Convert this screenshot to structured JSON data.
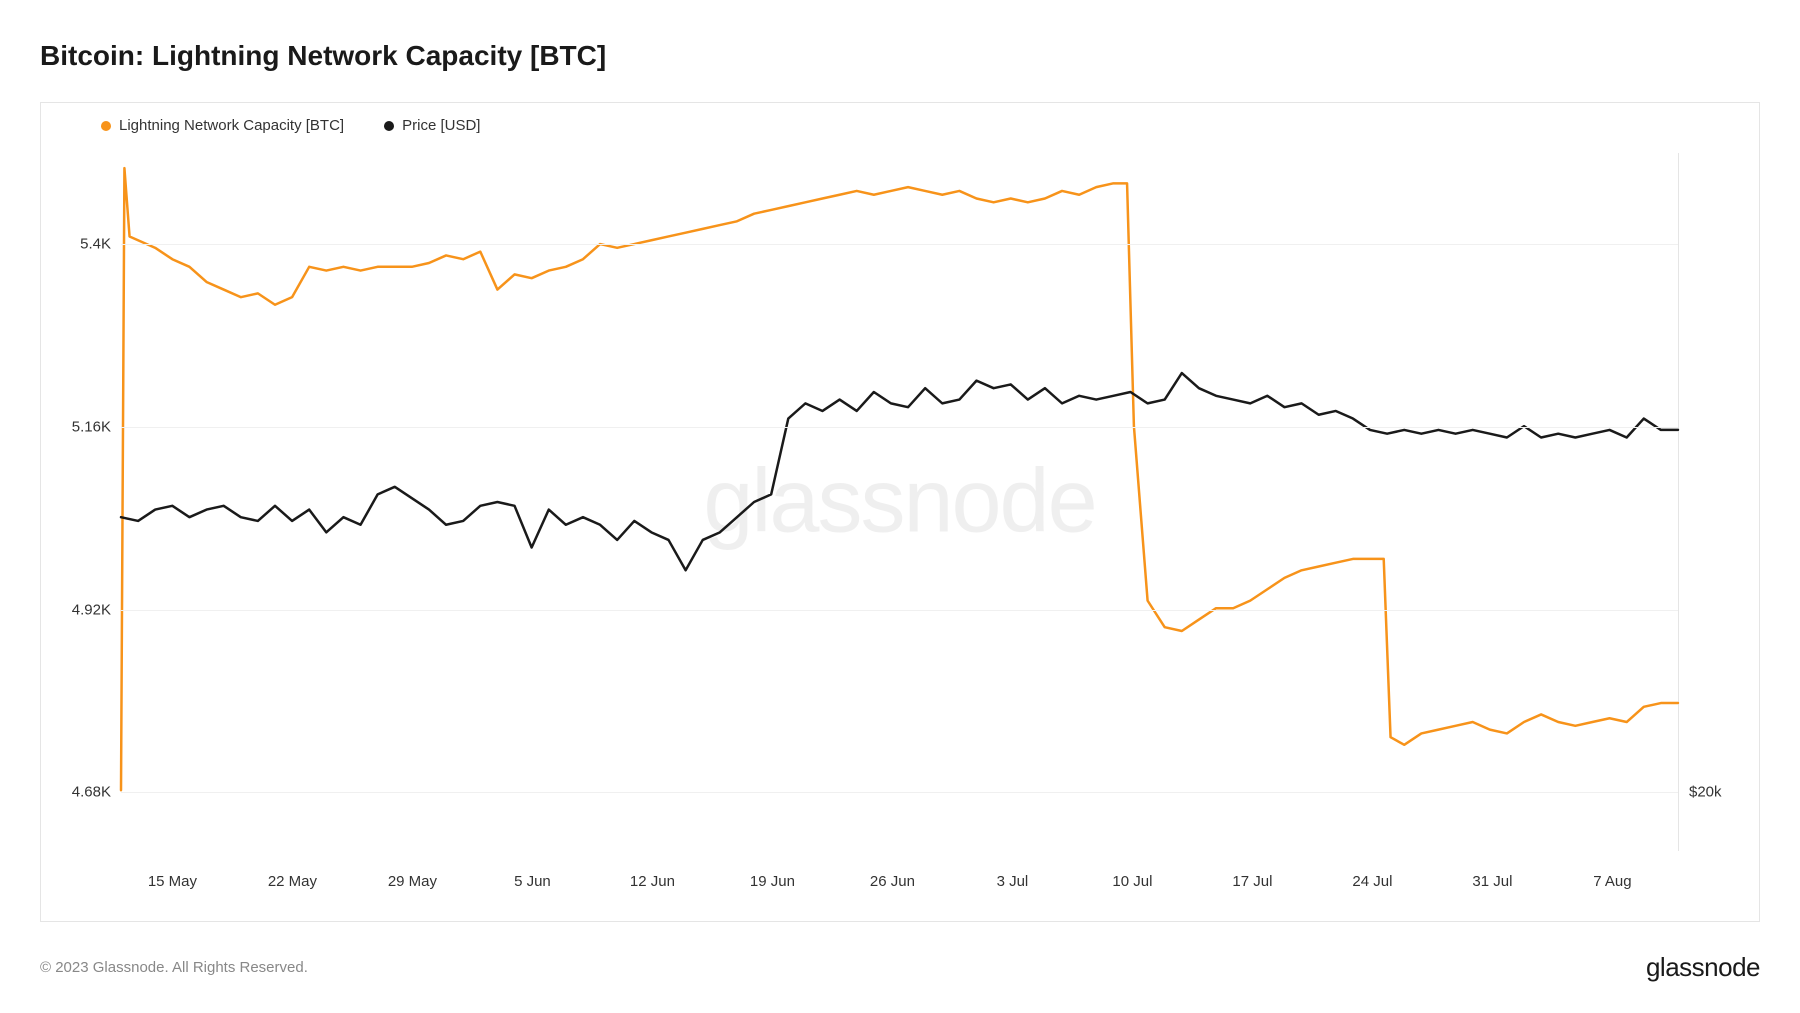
{
  "title": "Bitcoin: Lightning Network Capacity [BTC]",
  "copyright": "© 2023 Glassnode. All Rights Reserved.",
  "brand": "glassnode",
  "watermark": "glassnode",
  "legend": {
    "series1": {
      "label": "Lightning Network Capacity [BTC]",
      "color": "#f7931a"
    },
    "series2": {
      "label": "Price [USD]",
      "color": "#1a1a1a"
    }
  },
  "chart": {
    "type": "line",
    "background_color": "#ffffff",
    "border_color": "#e5e5e5",
    "grid_color": "#f0f0f0",
    "line_width": 2.5,
    "watermark_opacity": 0.06,
    "watermark_fontsize": 90,
    "y_left": {
      "min": 4.6,
      "max": 5.52,
      "ticks": [
        {
          "value": 5.4,
          "label": "5.4K"
        },
        {
          "value": 5.16,
          "label": "5.16K"
        },
        {
          "value": 4.92,
          "label": "4.92K"
        },
        {
          "value": 4.68,
          "label": "4.68K"
        }
      ],
      "label_fontsize": 15,
      "label_color": "#333333"
    },
    "y_right": {
      "ticks": [
        {
          "value": 4.68,
          "label": "$20k"
        }
      ],
      "label_fontsize": 15,
      "label_color": "#333333"
    },
    "x": {
      "min": 0,
      "max": 91,
      "ticks": [
        {
          "value": 3,
          "label": "15 May"
        },
        {
          "value": 10,
          "label": "22 May"
        },
        {
          "value": 17,
          "label": "29 May"
        },
        {
          "value": 24,
          "label": "5 Jun"
        },
        {
          "value": 31,
          "label": "12 Jun"
        },
        {
          "value": 38,
          "label": "19 Jun"
        },
        {
          "value": 45,
          "label": "26 Jun"
        },
        {
          "value": 52,
          "label": "3 Jul"
        },
        {
          "value": 59,
          "label": "10 Jul"
        },
        {
          "value": 66,
          "label": "17 Jul"
        },
        {
          "value": 73,
          "label": "24 Jul"
        },
        {
          "value": 80,
          "label": "31 Jul"
        },
        {
          "value": 87,
          "label": "7 Aug"
        }
      ],
      "label_fontsize": 15,
      "label_color": "#333333"
    },
    "series_capacity": {
      "color": "#f7931a",
      "data": [
        [
          0.0,
          4.68
        ],
        [
          0.2,
          5.5
        ],
        [
          0.5,
          5.41
        ],
        [
          2,
          5.395
        ],
        [
          3,
          5.38
        ],
        [
          4,
          5.37
        ],
        [
          5,
          5.35
        ],
        [
          6,
          5.34
        ],
        [
          7,
          5.33
        ],
        [
          8,
          5.335
        ],
        [
          9,
          5.32
        ],
        [
          10,
          5.33
        ],
        [
          11,
          5.37
        ],
        [
          12,
          5.365
        ],
        [
          13,
          5.37
        ],
        [
          14,
          5.365
        ],
        [
          15,
          5.37
        ],
        [
          16,
          5.37
        ],
        [
          17,
          5.37
        ],
        [
          18,
          5.375
        ],
        [
          19,
          5.385
        ],
        [
          20,
          5.38
        ],
        [
          21,
          5.39
        ],
        [
          22,
          5.34
        ],
        [
          23,
          5.36
        ],
        [
          24,
          5.355
        ],
        [
          25,
          5.365
        ],
        [
          26,
          5.37
        ],
        [
          27,
          5.38
        ],
        [
          28,
          5.4
        ],
        [
          29,
          5.395
        ],
        [
          30,
          5.4
        ],
        [
          31,
          5.405
        ],
        [
          32,
          5.41
        ],
        [
          33,
          5.415
        ],
        [
          34,
          5.42
        ],
        [
          35,
          5.425
        ],
        [
          36,
          5.43
        ],
        [
          37,
          5.44
        ],
        [
          38,
          5.445
        ],
        [
          39,
          5.45
        ],
        [
          40,
          5.455
        ],
        [
          41,
          5.46
        ],
        [
          42,
          5.465
        ],
        [
          43,
          5.47
        ],
        [
          44,
          5.465
        ],
        [
          45,
          5.47
        ],
        [
          46,
          5.475
        ],
        [
          47,
          5.47
        ],
        [
          48,
          5.465
        ],
        [
          49,
          5.47
        ],
        [
          50,
          5.46
        ],
        [
          51,
          5.455
        ],
        [
          52,
          5.46
        ],
        [
          53,
          5.455
        ],
        [
          54,
          5.46
        ],
        [
          55,
          5.47
        ],
        [
          56,
          5.465
        ],
        [
          57,
          5.475
        ],
        [
          58,
          5.48
        ],
        [
          58.8,
          5.48
        ],
        [
          59.2,
          5.16
        ],
        [
          60,
          4.93
        ],
        [
          61,
          4.895
        ],
        [
          62,
          4.89
        ],
        [
          63,
          4.905
        ],
        [
          64,
          4.92
        ],
        [
          65,
          4.92
        ],
        [
          66,
          4.93
        ],
        [
          67,
          4.945
        ],
        [
          68,
          4.96
        ],
        [
          69,
          4.97
        ],
        [
          70,
          4.975
        ],
        [
          71,
          4.98
        ],
        [
          72,
          4.985
        ],
        [
          73,
          4.985
        ],
        [
          73.8,
          4.985
        ],
        [
          74.2,
          4.75
        ],
        [
          75,
          4.74
        ],
        [
          76,
          4.755
        ],
        [
          77,
          4.76
        ],
        [
          78,
          4.765
        ],
        [
          79,
          4.77
        ],
        [
          80,
          4.76
        ],
        [
          81,
          4.755
        ],
        [
          82,
          4.77
        ],
        [
          83,
          4.78
        ],
        [
          84,
          4.77
        ],
        [
          85,
          4.765
        ],
        [
          86,
          4.77
        ],
        [
          87,
          4.775
        ],
        [
          88,
          4.77
        ],
        [
          89,
          4.79
        ],
        [
          90,
          4.795
        ],
        [
          91,
          4.795
        ]
      ]
    },
    "series_price": {
      "color": "#1a1a1a",
      "data": [
        [
          0,
          5.04
        ],
        [
          1,
          5.035
        ],
        [
          2,
          5.05
        ],
        [
          3,
          5.055
        ],
        [
          4,
          5.04
        ],
        [
          5,
          5.05
        ],
        [
          6,
          5.055
        ],
        [
          7,
          5.04
        ],
        [
          8,
          5.035
        ],
        [
          9,
          5.055
        ],
        [
          10,
          5.035
        ],
        [
          11,
          5.05
        ],
        [
          12,
          5.02
        ],
        [
          13,
          5.04
        ],
        [
          14,
          5.03
        ],
        [
          15,
          5.07
        ],
        [
          16,
          5.08
        ],
        [
          17,
          5.065
        ],
        [
          18,
          5.05
        ],
        [
          19,
          5.03
        ],
        [
          20,
          5.035
        ],
        [
          21,
          5.055
        ],
        [
          22,
          5.06
        ],
        [
          23,
          5.055
        ],
        [
          24,
          5.0
        ],
        [
          25,
          5.05
        ],
        [
          26,
          5.03
        ],
        [
          27,
          5.04
        ],
        [
          28,
          5.03
        ],
        [
          29,
          5.01
        ],
        [
          30,
          5.035
        ],
        [
          31,
          5.02
        ],
        [
          32,
          5.01
        ],
        [
          33,
          4.97
        ],
        [
          34,
          5.01
        ],
        [
          35,
          5.02
        ],
        [
          36,
          5.04
        ],
        [
          37,
          5.06
        ],
        [
          38,
          5.07
        ],
        [
          39,
          5.17
        ],
        [
          40,
          5.19
        ],
        [
          41,
          5.18
        ],
        [
          42,
          5.195
        ],
        [
          43,
          5.18
        ],
        [
          44,
          5.205
        ],
        [
          45,
          5.19
        ],
        [
          46,
          5.185
        ],
        [
          47,
          5.21
        ],
        [
          48,
          5.19
        ],
        [
          49,
          5.195
        ],
        [
          50,
          5.22
        ],
        [
          51,
          5.21
        ],
        [
          52,
          5.215
        ],
        [
          53,
          5.195
        ],
        [
          54,
          5.21
        ],
        [
          55,
          5.19
        ],
        [
          56,
          5.2
        ],
        [
          57,
          5.195
        ],
        [
          58,
          5.2
        ],
        [
          59,
          5.205
        ],
        [
          60,
          5.19
        ],
        [
          61,
          5.195
        ],
        [
          62,
          5.23
        ],
        [
          63,
          5.21
        ],
        [
          64,
          5.2
        ],
        [
          65,
          5.195
        ],
        [
          66,
          5.19
        ],
        [
          67,
          5.2
        ],
        [
          68,
          5.185
        ],
        [
          69,
          5.19
        ],
        [
          70,
          5.175
        ],
        [
          71,
          5.18
        ],
        [
          72,
          5.17
        ],
        [
          73,
          5.155
        ],
        [
          74,
          5.15
        ],
        [
          75,
          5.155
        ],
        [
          76,
          5.15
        ],
        [
          77,
          5.155
        ],
        [
          78,
          5.15
        ],
        [
          79,
          5.155
        ],
        [
          80,
          5.15
        ],
        [
          81,
          5.145
        ],
        [
          82,
          5.16
        ],
        [
          83,
          5.145
        ],
        [
          84,
          5.15
        ],
        [
          85,
          5.145
        ],
        [
          86,
          5.15
        ],
        [
          87,
          5.155
        ],
        [
          88,
          5.145
        ],
        [
          89,
          5.17
        ],
        [
          90,
          5.155
        ],
        [
          91,
          5.155
        ]
      ]
    }
  }
}
